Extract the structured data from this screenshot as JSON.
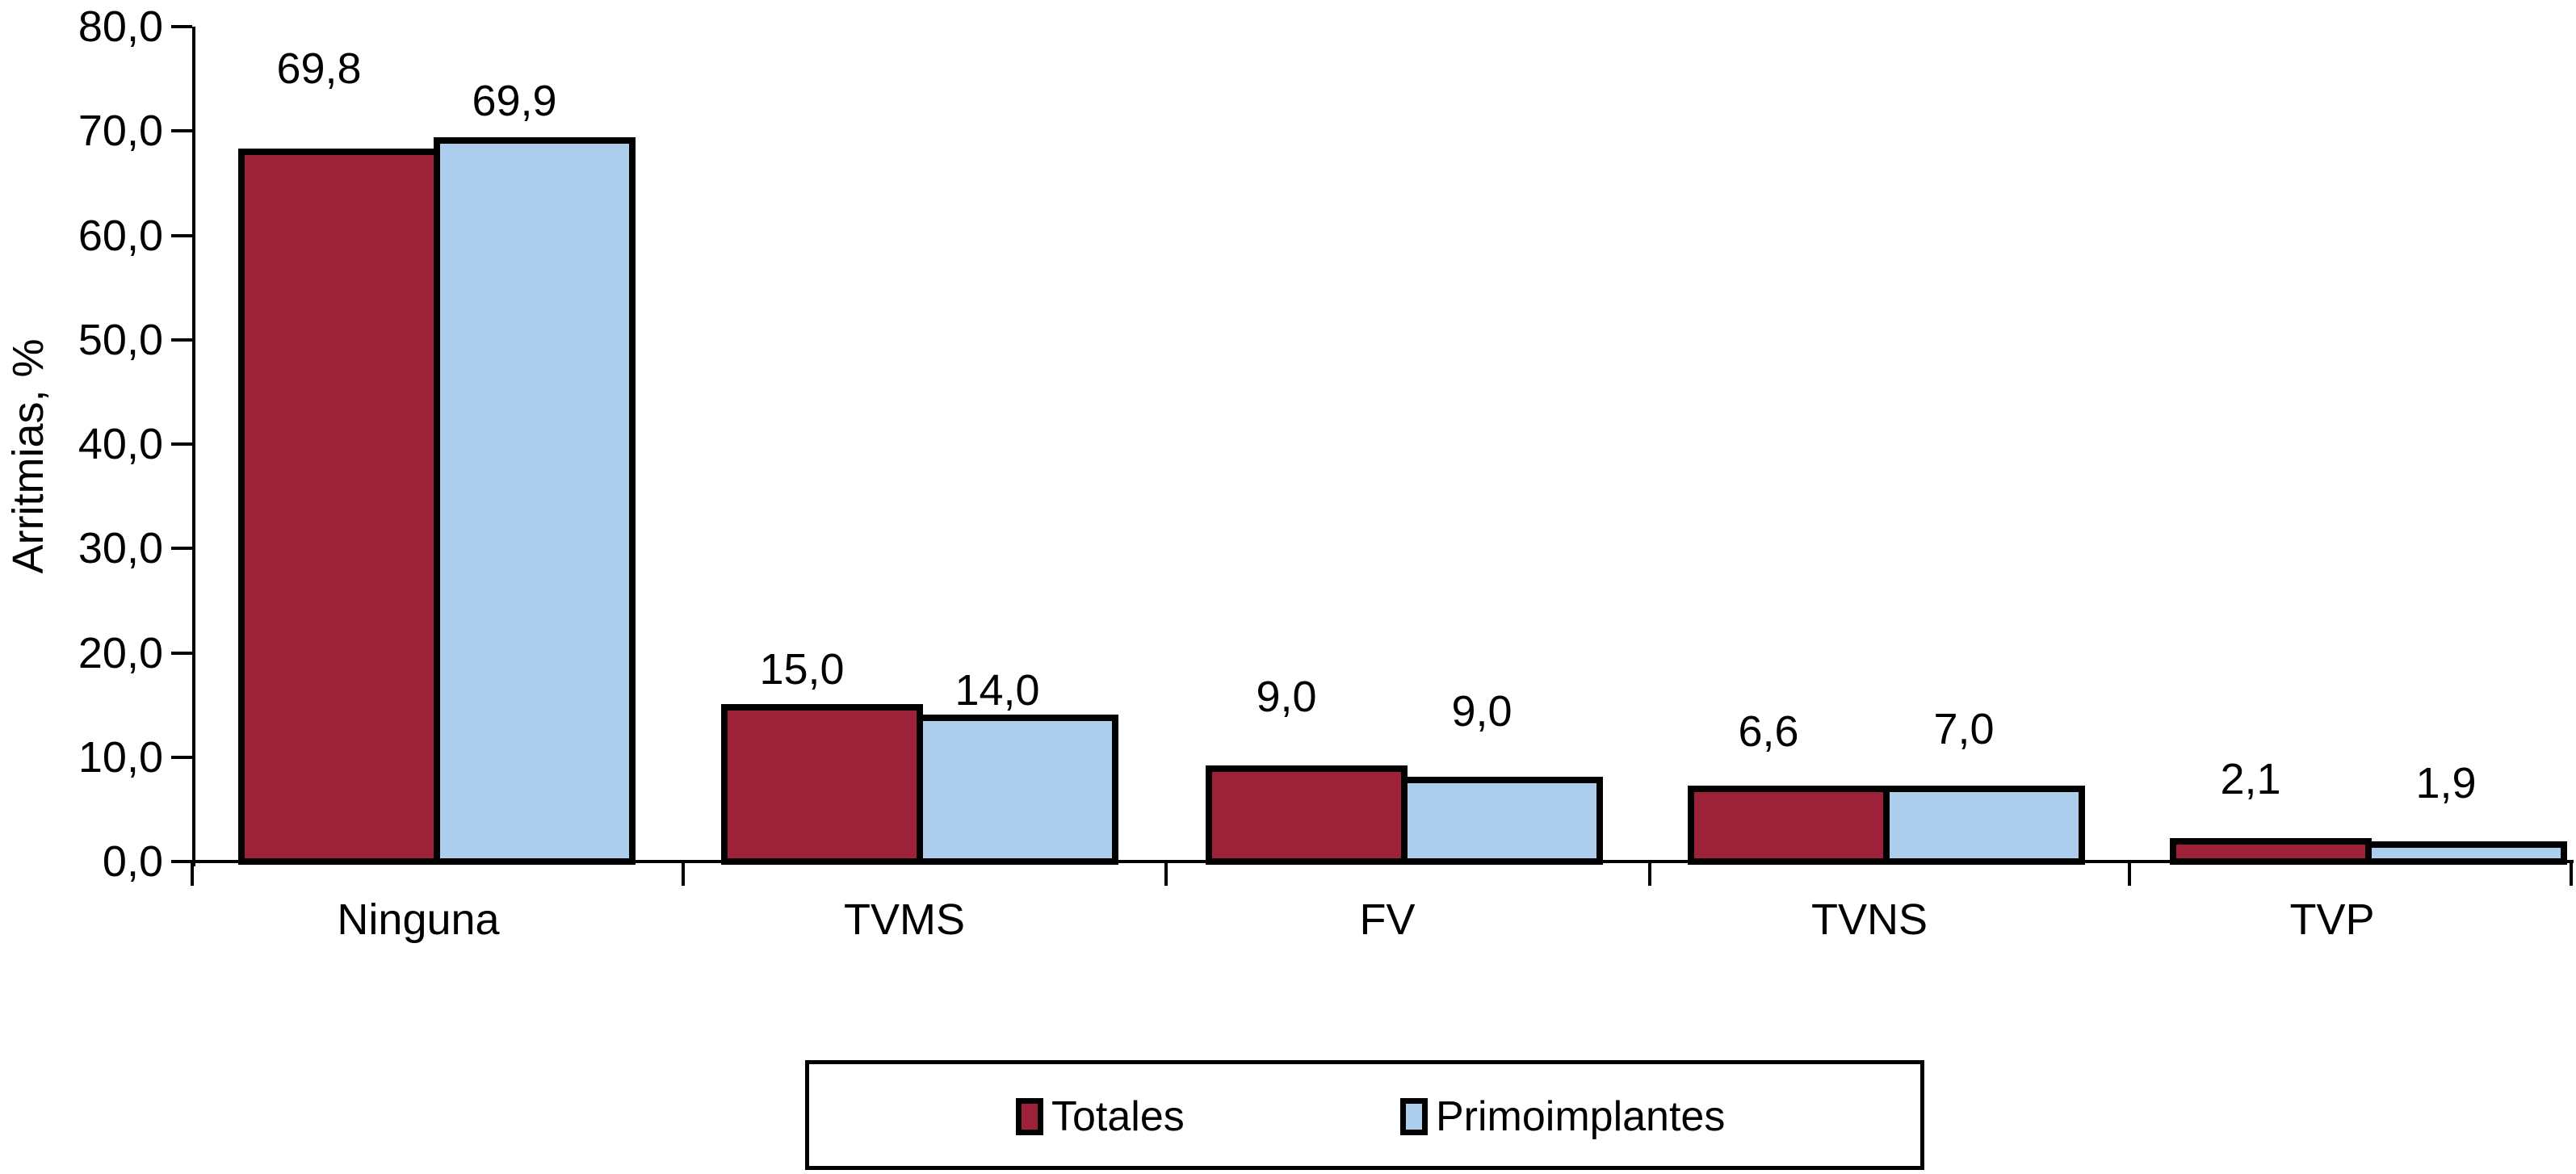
{
  "chart_data": {
    "type": "bar",
    "title": "",
    "xlabel": "",
    "ylabel": "Arritmias, %",
    "categories": [
      "Ninguna",
      "TVMS",
      "FV",
      "TVNS",
      "TVP"
    ],
    "series": [
      {
        "name": "Totales",
        "color": "#9D2239",
        "values": [
          69.8,
          15.0,
          9.0,
          6.6,
          2.1
        ],
        "value_labels": [
          "69,8",
          "15,0",
          "9,0",
          "6,6",
          "2,1"
        ]
      },
      {
        "name": "Primoimplantes",
        "color": "#ADCDEC",
        "values": [
          69.9,
          14.0,
          9.0,
          7.0,
          1.9
        ],
        "value_labels": [
          "69,9",
          "14,0",
          "9,0",
          "7,0",
          "1,9"
        ]
      }
    ],
    "ylim": [
      0,
      80
    ],
    "ytick_step": 10,
    "ytick_labels": [
      "0,0",
      "10,0",
      "20,0",
      "30,0",
      "40,0",
      "50,0",
      "60,0",
      "70,0",
      "80,0"
    ],
    "decimal_separator": ",",
    "grid": false,
    "bar_outline_color": "#000000",
    "axis_color": "#000000",
    "legend_position": "bottom-center"
  }
}
